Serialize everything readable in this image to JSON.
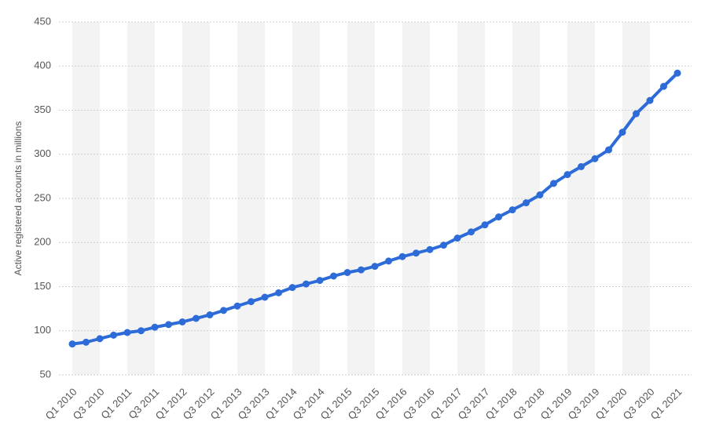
{
  "chart_data": {
    "type": "line",
    "y_label": "Active registered accounts in millions",
    "categories": [
      "Q1 2010",
      null,
      "Q3 2010",
      null,
      "Q1 2011",
      null,
      "Q3 2011",
      null,
      "Q1 2012",
      null,
      "Q3 2012",
      null,
      "Q1 2013",
      null,
      "Q3 2013",
      null,
      "Q1 2014",
      null,
      "Q3 2014",
      null,
      "Q1 2015",
      null,
      "Q3 2015",
      null,
      "Q1 2016",
      null,
      "Q3 2016",
      null,
      "Q1 2017",
      null,
      "Q3 2017",
      null,
      "Q1 2018",
      null,
      "Q3 2018",
      null,
      "Q1 2019",
      null,
      "Q3 2019",
      null,
      "Q1 2020",
      null,
      "Q3 2020",
      null,
      "Q1 2021"
    ],
    "values": [
      85,
      87,
      91,
      95,
      98,
      100,
      104,
      107,
      110,
      114,
      118,
      123,
      128,
      133,
      138,
      143,
      149,
      153,
      157,
      162,
      166,
      169,
      173,
      179,
      184,
      188,
      192,
      197,
      205,
      212,
      220,
      229,
      237,
      245,
      254,
      267,
      277,
      286,
      295,
      305,
      325,
      346,
      361,
      377,
      392
    ],
    "color": "#2c6bd8",
    "ylim": [
      50,
      450
    ],
    "yticks": [
      50,
      100,
      150,
      200,
      250,
      300,
      350,
      400,
      450
    ],
    "grid": true
  }
}
